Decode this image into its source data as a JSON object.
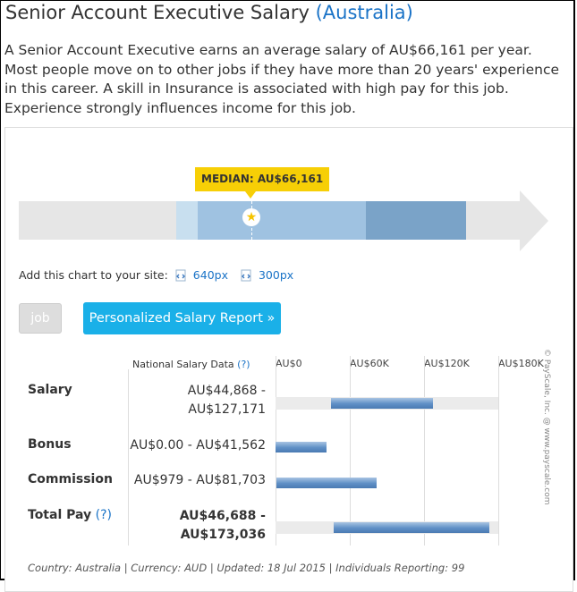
{
  "page": {
    "title_main": "Senior Account Executive Salary",
    "title_country": "(Australia)",
    "intro": "A Senior Account Executive earns an average salary of AU$66,161 per year. Most people move on to other jobs if they have more than 20 years' experience in this career. A skill in Insurance is associated with high pay for this job. Experience strongly influences income for this job."
  },
  "range_chart": {
    "median_label": "MEDIAN: AU$66,161",
    "median_icon": "star-icon",
    "colors": {
      "base": "#e6e6e6",
      "p10": "#c8dfef",
      "mid": "#9fc2e1",
      "p90": "#7aa3c8",
      "median": "#f7cf06"
    }
  },
  "add_chart": {
    "label": "Add this chart to your site:",
    "link1": "640px",
    "link2": "300px"
  },
  "buttons": {
    "job": "job",
    "report": "Personalized Salary Report »"
  },
  "table": {
    "header": "National Salary Data",
    "help": "(?)",
    "axis_ticks": [
      "AU$0",
      "AU$60K",
      "AU$120K",
      "AU$180K"
    ],
    "axis_max": 180000,
    "rows": [
      {
        "label": "Salary",
        "help": "",
        "range_line1": "AU$44,868 -",
        "range_line2": "AU$127,171",
        "bold": false,
        "min": 44868,
        "max": 127171
      },
      {
        "label": "Bonus",
        "help": "",
        "range_line1": "AU$0.00 - AU$41,562",
        "range_line2": "",
        "bold": false,
        "min": 0,
        "max": 41562
      },
      {
        "label": "Commission",
        "help": "",
        "range_line1": "AU$979 - AU$81,703",
        "range_line2": "",
        "bold": false,
        "min": 979,
        "max": 81703
      },
      {
        "label": "Total Pay",
        "help": "(?)",
        "range_line1": "AU$46,688 -",
        "range_line2": "AU$173,036",
        "bold": true,
        "min": 46688,
        "max": 173036
      }
    ]
  },
  "footer": "Country: Australia | Currency: AUD | Updated: 18 Jul 2015 | Individuals Reporting: 99",
  "copyright": "© PayScale, Inc. @ www.payscale.com",
  "accent": "#1a73c7",
  "button_color": "#1ab0e8"
}
